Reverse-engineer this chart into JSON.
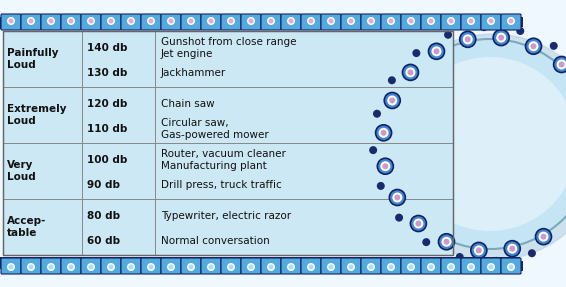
{
  "rows": [
    {
      "level": "Painfully\nLoud",
      "db1": "140 db",
      "ex1": "Gunshot from close range\nJet engine",
      "db2": "130 db",
      "ex2": "Jackhammer"
    },
    {
      "level": "Extremely\nLoud",
      "db1": "120 db",
      "ex1": "Chain saw",
      "db2": "110 db",
      "ex2": "Circular saw,\nGas-powered mower"
    },
    {
      "level": "Very\nLoud",
      "db1": "100 db",
      "ex1": "Router, vacuum cleaner\nManufacturing plant",
      "db2": "90 db",
      "ex2": "Drill press, truck traffic"
    },
    {
      "level": "Accep-\ntable",
      "db1": "80 db",
      "ex1": "Typewriter, electric razor",
      "db2": "60 db",
      "ex2": "Normal conversation"
    }
  ],
  "bg_color": "#ffffff",
  "table_bg": "#d4ecf7",
  "chain_body_color": "#3a7fc1",
  "chain_edge_color": "#1a3a8a",
  "chain_highlight": "#6ab8e8",
  "tooth_color": "#1e3a8a",
  "blade_color": "#b8ddf0",
  "blade_edge": "#88aac8",
  "fig_width": 5.66,
  "fig_height": 2.87,
  "dpi": 100
}
